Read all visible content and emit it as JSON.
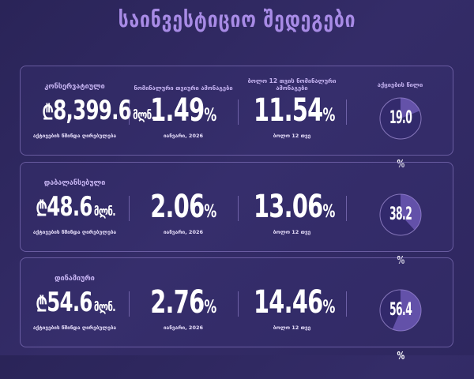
{
  "title": "საინვესტიციო შედეგები",
  "labels": {
    "nav": "აქტივების წმინდა ღირებულება",
    "monthly": "ნომინალური თვიური ამონაგები",
    "annual": "ბოლო 12 თვის ნომინალური ამონაგები",
    "equity": "აქციების წილი",
    "unit": "მლნ.",
    "currency": "₾",
    "percent": "%"
  },
  "portfolios": [
    {
      "name": "კონსერვატიული",
      "nav": "8,399.6",
      "monthly": "1.49",
      "monthly_period": "იანვარი, 2026",
      "annual": "11.54",
      "annual_period": "ბოლო 12 თვე",
      "equity": "19.0",
      "equity_fraction": 0.19
    },
    {
      "name": "დაბალანსებული",
      "nav": "48.6",
      "monthly": "2.06",
      "monthly_period": "იანვარი, 2026",
      "annual": "13.06",
      "annual_period": "ბოლო 12 თვე",
      "equity": "38.2",
      "equity_fraction": 0.382
    },
    {
      "name": "დინამიური",
      "nav": "54.6",
      "monthly": "2.76",
      "monthly_period": "იანვარი, 2026",
      "annual": "14.46",
      "annual_period": "ბოლო 12 თვე",
      "equity": "56.4",
      "equity_fraction": 0.564
    }
  ]
}
